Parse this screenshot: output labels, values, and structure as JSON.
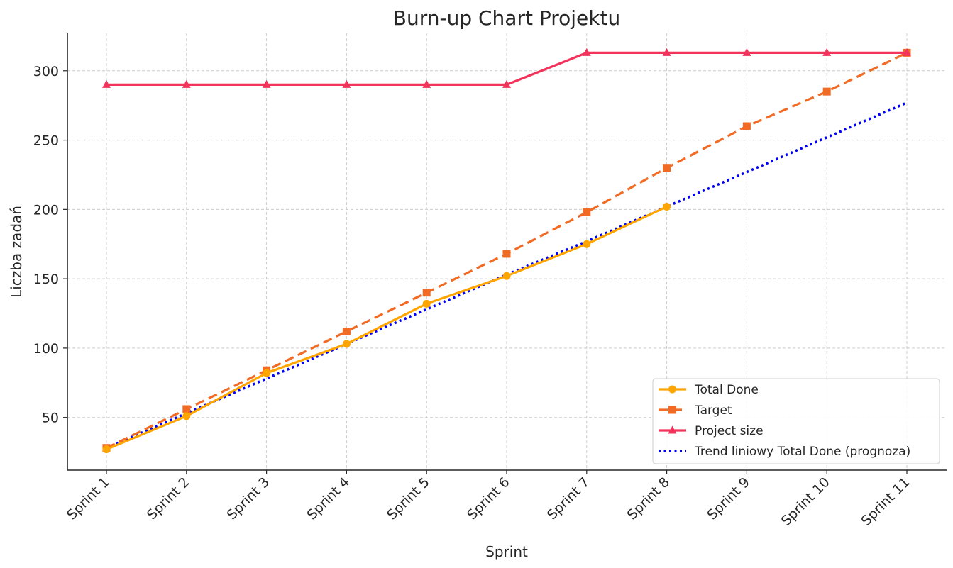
{
  "chart_data": {
    "type": "line",
    "title": "Burn-up Chart Projektu",
    "xlabel": "Sprint",
    "ylabel": "Liczba zadań",
    "categories": [
      "Sprint 1",
      "Sprint 2",
      "Sprint 3",
      "Sprint 4",
      "Sprint 5",
      "Sprint 6",
      "Sprint 7",
      "Sprint 8",
      "Sprint 9",
      "Sprint 10",
      "Sprint 11"
    ],
    "yticks": [
      50,
      100,
      150,
      200,
      250,
      300
    ],
    "ylim": [
      12,
      327
    ],
    "grid": true,
    "legend_position": "bottom-right",
    "series": [
      {
        "name": "Total Done",
        "color": "#ffa500",
        "style": "solid",
        "marker": "circle",
        "values": [
          27,
          51,
          82,
          103,
          132,
          152,
          175,
          202,
          null,
          null,
          null
        ]
      },
      {
        "name": "Target",
        "color": "#f26b24",
        "style": "dashed",
        "marker": "square",
        "values": [
          28,
          56,
          84,
          112,
          140,
          168,
          198,
          230,
          260,
          285,
          313
        ]
      },
      {
        "name": "Project size",
        "color": "#f2335b",
        "style": "solid",
        "marker": "triangle",
        "values": [
          290,
          290,
          290,
          290,
          290,
          290,
          313,
          313,
          313,
          313,
          313
        ]
      },
      {
        "name": "Trend liniowy Total Done (prognoza)",
        "color": "#0000ff",
        "style": "dotted",
        "marker": "none",
        "values": [
          28,
          53,
          78,
          103,
          128,
          153,
          177,
          202,
          227,
          252,
          277
        ]
      }
    ]
  }
}
